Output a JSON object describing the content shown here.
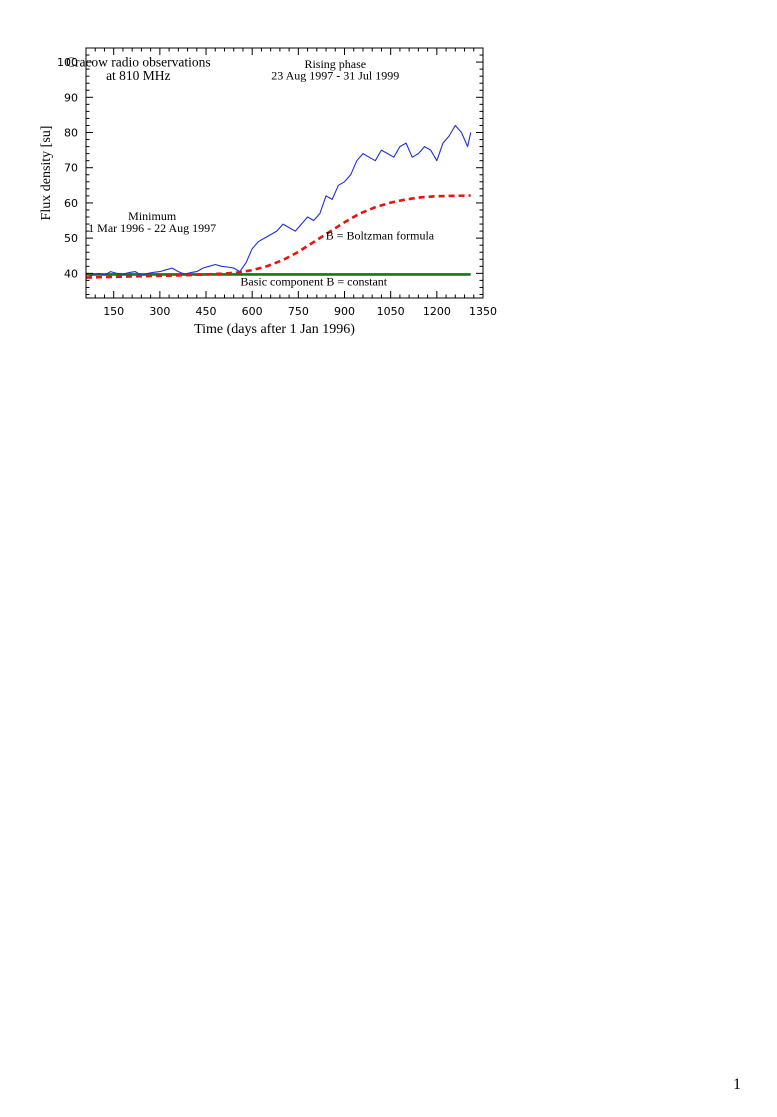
{
  "chart_data": {
    "type": "line",
    "title": "",
    "xlabel": "Time  (days after 1 Jan 1996)",
    "ylabel": "Flux density  [su]",
    "xlim": [
      60,
      1350
    ],
    "ylim": [
      33,
      104
    ],
    "x_ticks": [
      150,
      300,
      450,
      600,
      750,
      900,
      1050,
      1200,
      1350
    ],
    "x_tick_labels": [
      "150",
      "300",
      "450",
      "600",
      "750",
      "900",
      "1050",
      "1200",
      "1350"
    ],
    "y_ticks": [
      40,
      50,
      60,
      70,
      80,
      90,
      100
    ],
    "y_tick_labels": [
      "40",
      "50",
      "60",
      "70",
      "80",
      "90",
      "100"
    ],
    "grid": false,
    "series": [
      {
        "name": "",
        "color": "#1f2fd6",
        "style": "solid",
        "x": [
          60,
          80,
          100,
          120,
          140,
          160,
          180,
          200,
          220,
          240,
          260,
          280,
          300,
          320,
          340,
          360,
          380,
          400,
          420,
          440,
          460,
          480,
          500,
          520,
          540,
          560,
          580,
          600,
          620,
          640,
          660,
          680,
          700,
          720,
          740,
          760,
          780,
          800,
          820,
          840,
          860,
          880,
          900,
          920,
          940,
          960,
          980,
          1000,
          1020,
          1040,
          1060,
          1080,
          1100,
          1120,
          1140,
          1160,
          1180,
          1200,
          1220,
          1240,
          1260,
          1280,
          1300,
          1310
        ],
        "y": [
          38.5,
          39.5,
          40.0,
          39.5,
          40.5,
          40.0,
          39.8,
          40.2,
          40.5,
          39.5,
          40.0,
          40.3,
          40.5,
          41.0,
          41.5,
          40.5,
          39.8,
          40.2,
          40.5,
          41.5,
          42.0,
          42.5,
          42.0,
          41.8,
          41.5,
          40.5,
          43.0,
          47.0,
          49.0,
          50.0,
          51.0,
          52.0,
          54.0,
          53.0,
          52.0,
          54.0,
          56.0,
          55.0,
          57.0,
          62.0,
          61.0,
          65.0,
          66.0,
          68.0,
          72.0,
          74.0,
          73.0,
          72.0,
          75.0,
          74.0,
          73.0,
          76.0,
          77.0,
          73.0,
          74.0,
          76.0,
          75.0,
          72.0,
          77.0,
          79.0,
          82.0,
          80.0,
          76.0,
          80.0
        ]
      },
      {
        "name": "B = Boltzman formula",
        "color": "#e8150f",
        "style": "dashed",
        "x": [
          60,
          100,
          150,
          200,
          250,
          300,
          350,
          400,
          450,
          500,
          550,
          600,
          650,
          700,
          750,
          800,
          850,
          900,
          950,
          1000,
          1050,
          1100,
          1150,
          1200,
          1250,
          1310
        ],
        "y": [
          38.8,
          38.9,
          39.0,
          39.1,
          39.2,
          39.3,
          39.4,
          39.5,
          39.7,
          39.9,
          40.2,
          40.9,
          42.1,
          43.8,
          46.1,
          48.9,
          51.7,
          54.5,
          57.0,
          58.8,
          60.1,
          61.0,
          61.6,
          61.9,
          62.0,
          62.1
        ]
      },
      {
        "name": "B = constant",
        "color": "#0f7a16",
        "style": "solid",
        "x": [
          60,
          1310
        ],
        "y": [
          39.7,
          39.7
        ]
      }
    ],
    "annotations": [
      {
        "id": "obs1",
        "text": "Cracow radio observations",
        "x": 230,
        "y": 98.7
      },
      {
        "id": "obs2",
        "text": "at 810 MHz",
        "x": 230,
        "y": 94.9
      },
      {
        "id": "rise1",
        "text": "Rising  phase",
        "x": 870,
        "y": 98.3
      },
      {
        "id": "rise2",
        "text": "23 Aug 1997 - 31 Jul 1999",
        "x": 870,
        "y": 95.0
      },
      {
        "id": "min1",
        "text": "Minimum",
        "x": 275,
        "y": 55.2
      },
      {
        "id": "min2",
        "text": "1 Mar 1996 - 22 Aug 1997",
        "x": 275,
        "y": 51.7
      },
      {
        "id": "boltz",
        "text": "B = Boltzman formula",
        "x": 1015,
        "y": 49.6
      },
      {
        "id": "basic",
        "text": "Basic component      B = constant",
        "x": 800,
        "y": 36.5
      }
    ]
  },
  "page": {
    "number": "1"
  }
}
